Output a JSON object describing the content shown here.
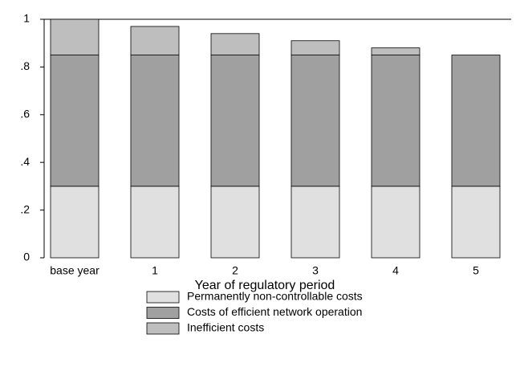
{
  "chart_data": {
    "type": "stacked_bar",
    "x_label": "Year of regulatory period",
    "categories": [
      "base year",
      "1",
      "2",
      "3",
      "4",
      "5"
    ],
    "series": [
      {
        "name": "Permanently non-controllable costs",
        "color": "#e0e0e0",
        "values": [
          0.3,
          0.3,
          0.3,
          0.3,
          0.3,
          0.3
        ]
      },
      {
        "name": "Costs of efficient network operation",
        "color": "#a0a0a0",
        "values": [
          0.55,
          0.55,
          0.55,
          0.55,
          0.55,
          0.55
        ]
      },
      {
        "name": "Inefficient costs",
        "color": "#bebebe",
        "values": [
          0.15,
          0.12,
          0.09,
          0.06,
          0.03,
          0
        ]
      }
    ],
    "ylim": [
      0,
      1
    ],
    "yticks": [
      0,
      {
        "value": 0.2,
        "label": ".2"
      },
      {
        "value": 0.4,
        "label": ".4"
      },
      {
        "value": 0.6,
        "label": ".6"
      },
      {
        "value": 0.8,
        "label": ".8"
      },
      1
    ],
    "legend": "bottom"
  }
}
